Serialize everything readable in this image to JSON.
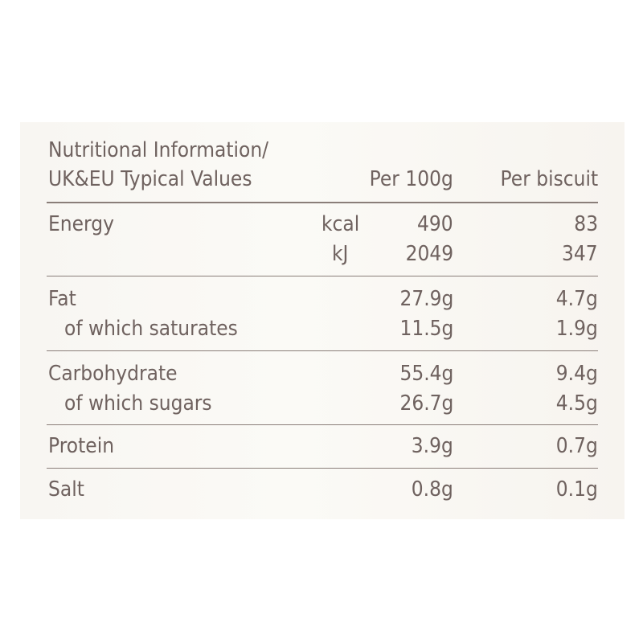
{
  "colors": {
    "text": "#6f625f",
    "rule": "#8a7e79",
    "panel": "#f8f6f2"
  },
  "header": {
    "title_line1": "Nutritional Information/",
    "title_line2": "UK&EU Typical Values",
    "col_per100g": "Per 100g",
    "col_perbiscuit": "Per biscuit"
  },
  "energy": {
    "label": "Energy",
    "kcal_unit": "kcal",
    "kcal_100g": "490",
    "kcal_biscuit": "83",
    "kj_unit": "kJ",
    "kj_100g": "2049",
    "kj_biscuit": "347"
  },
  "fat": {
    "label": "Fat",
    "per100g": "27.9g",
    "perbiscuit": "4.7g"
  },
  "saturates": {
    "label": "of which saturates",
    "per100g": "11.5g",
    "perbiscuit": "1.9g"
  },
  "carbohydrate": {
    "label": "Carbohydrate",
    "per100g": "55.4g",
    "perbiscuit": "9.4g"
  },
  "sugars": {
    "label": "of which sugars",
    "per100g": "26.7g",
    "perbiscuit": "4.5g"
  },
  "protein": {
    "label": "Protein",
    "per100g": "3.9g",
    "perbiscuit": "0.7g"
  },
  "salt": {
    "label": "Salt",
    "per100g": "0.8g",
    "perbiscuit": "0.1g"
  }
}
